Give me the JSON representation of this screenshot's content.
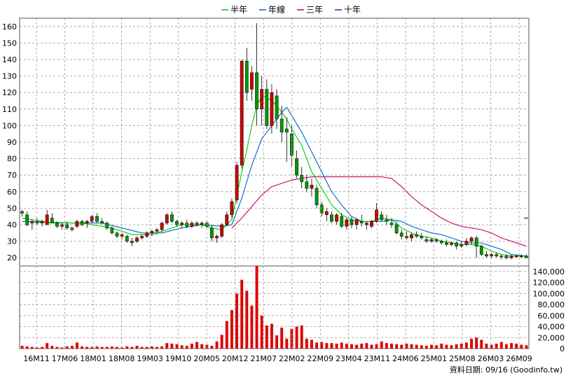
{
  "chart_data": {
    "type": "candlestick",
    "legend": [
      {
        "name": "半年",
        "color": "#00cc00"
      },
      {
        "name": "年線",
        "color": "#0066cc"
      },
      {
        "name": "三年",
        "color": "#cc0066"
      },
      {
        "name": "十年",
        "color": "#660099"
      }
    ],
    "price_axis": {
      "ylim": [
        15,
        165
      ],
      "ticks": [
        20,
        30,
        40,
        50,
        60,
        70,
        80,
        90,
        100,
        110,
        120,
        130,
        140,
        150,
        160
      ]
    },
    "volume_axis": {
      "ylim": [
        0,
        150000
      ],
      "ticks": [
        "0",
        "20,000",
        "40,000",
        "60,000",
        "80,000",
        "100,000",
        "120,000",
        "140,000"
      ],
      "tick_values": [
        0,
        20000,
        40000,
        60000,
        80000,
        100000,
        120000,
        140000
      ]
    },
    "x_tick_labels": [
      "16M11",
      "17M06",
      "18M01",
      "18M08",
      "19M03",
      "19M10",
      "20M05",
      "20M12",
      "21M07",
      "22M02",
      "22M09",
      "23M04",
      "23M11",
      "24M06",
      "25M01",
      "25M08",
      "26M03",
      "26M09"
    ],
    "colors": {
      "up": "#cc0000",
      "down": "#009900",
      "volume": "#dd0000",
      "grid": "#999999"
    },
    "ten_year_last": 44,
    "candles": [
      [
        48,
        49,
        45,
        47
      ],
      [
        46,
        48,
        39,
        40
      ],
      [
        41,
        43,
        37,
        42
      ],
      [
        42,
        44,
        40,
        41
      ],
      [
        41,
        43,
        39,
        42
      ],
      [
        40,
        49,
        40,
        46
      ],
      [
        44,
        47,
        41,
        41
      ],
      [
        41,
        42,
        38,
        39
      ],
      [
        39,
        41,
        37,
        40
      ],
      [
        40,
        42,
        37,
        38
      ],
      [
        38,
        39,
        36,
        37
      ],
      [
        39,
        43,
        38,
        42
      ],
      [
        42,
        43,
        39,
        40
      ],
      [
        41,
        43,
        38,
        42
      ],
      [
        42,
        46,
        41,
        45
      ],
      [
        45,
        47,
        41,
        42
      ],
      [
        42,
        44,
        40,
        41
      ],
      [
        41,
        42,
        37,
        38
      ],
      [
        38,
        39,
        34,
        35
      ],
      [
        35,
        36,
        32,
        33
      ],
      [
        33,
        35,
        31,
        34
      ],
      [
        33,
        34,
        29,
        30
      ],
      [
        30,
        32,
        27,
        29
      ],
      [
        30,
        33,
        29,
        32
      ],
      [
        32,
        34,
        31,
        33
      ],
      [
        33,
        36,
        32,
        35
      ],
      [
        35,
        37,
        33,
        36
      ],
      [
        36,
        38,
        34,
        37
      ],
      [
        37,
        42,
        36,
        41
      ],
      [
        41,
        47,
        40,
        46
      ],
      [
        46,
        48,
        41,
        42
      ],
      [
        42,
        43,
        39,
        40
      ],
      [
        40,
        42,
        38,
        41
      ],
      [
        41,
        43,
        38,
        39
      ],
      [
        39,
        42,
        38,
        41
      ],
      [
        41,
        42,
        39,
        40
      ],
      [
        40,
        42,
        38,
        41
      ],
      [
        41,
        42,
        38,
        39
      ],
      [
        38,
        40,
        30,
        32
      ],
      [
        32,
        34,
        29,
        33
      ],
      [
        33,
        41,
        32,
        40
      ],
      [
        40,
        48,
        39,
        46
      ],
      [
        46,
        56,
        44,
        54
      ],
      [
        55,
        78,
        53,
        76
      ],
      [
        76,
        140,
        74,
        139
      ],
      [
        139,
        147,
        115,
        120
      ],
      [
        122,
        136,
        115,
        132
      ],
      [
        132,
        162,
        100,
        110
      ],
      [
        110,
        130,
        100,
        122
      ],
      [
        122,
        128,
        98,
        100
      ],
      [
        100,
        125,
        95,
        120
      ],
      [
        118,
        122,
        98,
        104
      ],
      [
        104,
        112,
        90,
        96
      ],
      [
        98,
        105,
        78,
        96
      ],
      [
        95,
        100,
        75,
        82
      ],
      [
        80,
        85,
        68,
        70
      ],
      [
        70,
        75,
        62,
        66
      ],
      [
        66,
        70,
        60,
        62
      ],
      [
        62,
        68,
        57,
        64
      ],
      [
        62,
        64,
        50,
        52
      ],
      [
        52,
        54,
        45,
        47
      ],
      [
        46,
        50,
        42,
        48
      ],
      [
        46,
        48,
        41,
        42
      ],
      [
        42,
        47,
        40,
        46
      ],
      [
        45,
        47,
        38,
        39
      ],
      [
        39,
        44,
        37,
        43
      ],
      [
        43,
        45,
        38,
        40
      ],
      [
        40,
        44,
        37,
        43
      ],
      [
        42,
        46,
        39,
        41
      ],
      [
        40,
        42,
        37,
        41
      ],
      [
        39,
        43,
        38,
        42
      ],
      [
        42,
        53,
        41,
        49
      ],
      [
        46,
        48,
        42,
        43
      ],
      [
        43,
        46,
        40,
        42
      ],
      [
        41,
        44,
        38,
        40
      ],
      [
        40,
        42,
        34,
        35
      ],
      [
        35,
        37,
        31,
        33
      ],
      [
        33,
        36,
        31,
        32
      ],
      [
        32,
        35,
        30,
        34
      ],
      [
        34,
        36,
        32,
        33
      ],
      [
        33,
        35,
        31,
        32
      ],
      [
        31,
        33,
        29,
        30
      ],
      [
        30,
        32,
        29,
        31
      ],
      [
        31,
        32,
        29,
        30
      ],
      [
        30,
        31,
        28,
        29
      ],
      [
        29,
        31,
        27,
        28
      ],
      [
        28,
        30,
        27,
        29
      ],
      [
        29,
        30,
        25,
        27
      ],
      [
        27,
        30,
        26,
        28
      ],
      [
        28,
        32,
        27,
        30
      ],
      [
        30,
        33,
        28,
        32
      ],
      [
        32,
        33,
        20,
        27
      ],
      [
        27,
        28,
        21,
        22
      ],
      [
        22,
        24,
        20,
        21
      ],
      [
        21,
        23,
        20,
        22
      ],
      [
        22,
        23,
        20,
        21
      ],
      [
        21,
        22,
        19,
        21
      ],
      [
        21,
        22,
        19,
        20
      ],
      [
        20,
        22,
        19,
        21
      ],
      [
        21,
        22,
        20,
        21
      ],
      [
        21,
        22,
        20,
        21
      ],
      [
        21,
        22,
        20,
        20
      ]
    ],
    "ma_half_year": [
      [
        0,
        44
      ],
      [
        6,
        41
      ],
      [
        12,
        41
      ],
      [
        18,
        38
      ],
      [
        22,
        34
      ],
      [
        26,
        34
      ],
      [
        32,
        40
      ],
      [
        36,
        40
      ],
      [
        38,
        38
      ],
      [
        40,
        37
      ],
      [
        42,
        43
      ],
      [
        44,
        72
      ],
      [
        45,
        85
      ],
      [
        46,
        100
      ],
      [
        47,
        112
      ],
      [
        48,
        118
      ],
      [
        49,
        117
      ],
      [
        50,
        115
      ],
      [
        51,
        112
      ],
      [
        52,
        108
      ],
      [
        53,
        104
      ],
      [
        54,
        98
      ],
      [
        56,
        88
      ],
      [
        58,
        72
      ],
      [
        60,
        62
      ],
      [
        62,
        52
      ],
      [
        64,
        46
      ],
      [
        66,
        43
      ],
      [
        68,
        42
      ],
      [
        70,
        42
      ],
      [
        72,
        44
      ],
      [
        74,
        43
      ],
      [
        76,
        38
      ],
      [
        78,
        35
      ],
      [
        80,
        33
      ],
      [
        82,
        32
      ],
      [
        84,
        30
      ],
      [
        86,
        29
      ],
      [
        88,
        28
      ],
      [
        90,
        28
      ],
      [
        92,
        27
      ],
      [
        94,
        24
      ],
      [
        96,
        22
      ],
      [
        98,
        21
      ],
      [
        101,
        21
      ]
    ],
    "ma_year": [
      [
        0,
        42
      ],
      [
        10,
        41
      ],
      [
        16,
        41
      ],
      [
        20,
        38
      ],
      [
        24,
        35
      ],
      [
        28,
        35
      ],
      [
        32,
        38
      ],
      [
        36,
        40
      ],
      [
        40,
        39
      ],
      [
        42,
        40
      ],
      [
        44,
        56
      ],
      [
        46,
        76
      ],
      [
        48,
        92
      ],
      [
        50,
        100
      ],
      [
        52,
        108
      ],
      [
        53,
        111
      ],
      [
        54,
        106
      ],
      [
        56,
        96
      ],
      [
        58,
        84
      ],
      [
        60,
        72
      ],
      [
        62,
        60
      ],
      [
        64,
        52
      ],
      [
        66,
        45
      ],
      [
        68,
        42
      ],
      [
        70,
        42
      ],
      [
        72,
        42
      ],
      [
        74,
        43
      ],
      [
        76,
        42
      ],
      [
        78,
        39
      ],
      [
        80,
        37
      ],
      [
        82,
        35
      ],
      [
        84,
        34
      ],
      [
        86,
        32
      ],
      [
        88,
        30
      ],
      [
        90,
        29
      ],
      [
        92,
        29
      ],
      [
        94,
        27
      ],
      [
        96,
        25
      ],
      [
        98,
        22
      ],
      [
        101,
        21
      ]
    ],
    "ma_three_year": [
      [
        42,
        38
      ],
      [
        44,
        44
      ],
      [
        46,
        51
      ],
      [
        48,
        58
      ],
      [
        50,
        63
      ],
      [
        52,
        65
      ],
      [
        54,
        67
      ],
      [
        56,
        68
      ],
      [
        58,
        69
      ],
      [
        62,
        69
      ],
      [
        66,
        69
      ],
      [
        70,
        69
      ],
      [
        72,
        69
      ],
      [
        74,
        68
      ],
      [
        76,
        63
      ],
      [
        78,
        57
      ],
      [
        80,
        52
      ],
      [
        82,
        48
      ],
      [
        84,
        44
      ],
      [
        86,
        41
      ],
      [
        88,
        39
      ],
      [
        90,
        38
      ],
      [
        92,
        37
      ],
      [
        94,
        35
      ],
      [
        96,
        32
      ],
      [
        98,
        30
      ],
      [
        100,
        28
      ],
      [
        101,
        27
      ]
    ],
    "volume": [
      5000,
      4000,
      3000,
      2000,
      3000,
      10000,
      5000,
      3000,
      2000,
      4000,
      5000,
      11000,
      4000,
      3000,
      3000,
      4000,
      3000,
      3000,
      4000,
      3000,
      2000,
      4000,
      3000,
      5000,
      3000,
      3000,
      4000,
      3000,
      4000,
      10000,
      9000,
      8000,
      6000,
      5000,
      9000,
      12000,
      8000,
      7000,
      5000,
      13000,
      25000,
      50000,
      70000,
      100000,
      125000,
      105000,
      78000,
      150000,
      60000,
      42000,
      45000,
      24000,
      38000,
      18000,
      36000,
      40000,
      42000,
      18000,
      16000,
      11000,
      12000,
      10000,
      10000,
      9000,
      11000,
      9000,
      8000,
      7000,
      9000,
      10000,
      7000,
      8000,
      13000,
      10000,
      9000,
      8000,
      7000,
      9000,
      8000,
      7000,
      6000,
      5000,
      7000,
      6000,
      9000,
      7000,
      6000,
      8000,
      9000,
      11000,
      18000,
      20000,
      16000,
      9000,
      7000,
      9000,
      12000,
      8000,
      10000,
      9000,
      7000,
      6000
    ]
  },
  "footer": {
    "text": "資料日期: 09/16  (Goodinfo.tw)"
  }
}
